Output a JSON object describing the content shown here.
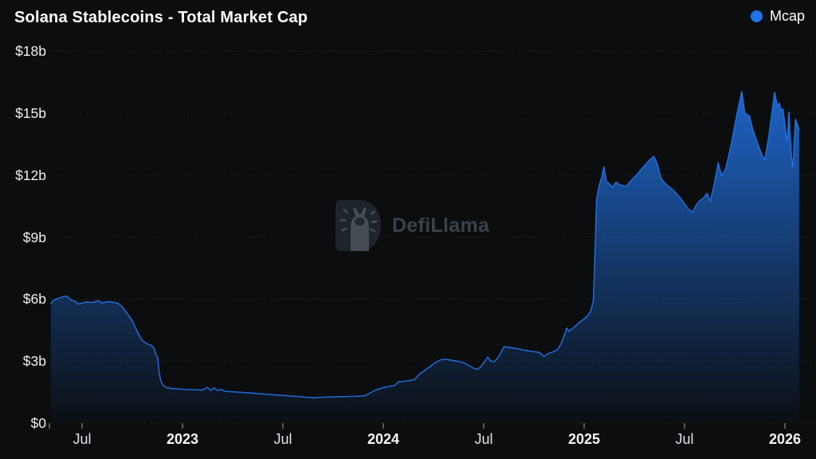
{
  "header": {
    "title": "Solana Stablecoins - Total Market Cap",
    "legend": [
      {
        "label": "Mcap",
        "color": "#2172e5"
      }
    ]
  },
  "watermark": {
    "text": "DefiLlama"
  },
  "chart_data": {
    "type": "area",
    "title": "Solana Stablecoins - Total Market Cap",
    "xlabel": "",
    "ylabel": "",
    "unit": "USD billions",
    "ylim": [
      0,
      18
    ],
    "xlim_years": [
      2022.34,
      2026.16
    ],
    "grid": "horizontal-dotted",
    "legend_position": "top-right",
    "y_ticks": [
      {
        "label": "$18b",
        "value": 18
      },
      {
        "label": "$15b",
        "value": 15
      },
      {
        "label": "$12b",
        "value": 12
      },
      {
        "label": "$9b",
        "value": 9
      },
      {
        "label": "$6b",
        "value": 6
      },
      {
        "label": "$3b",
        "value": 3
      },
      {
        "label": "$0",
        "value": 0
      }
    ],
    "x_ticks": [
      {
        "label": "Jul",
        "year": 2022.5,
        "bold": false
      },
      {
        "label": "2023",
        "year": 2023.0,
        "bold": true
      },
      {
        "label": "Jul",
        "year": 2023.5,
        "bold": false
      },
      {
        "label": "2024",
        "year": 2024.0,
        "bold": true
      },
      {
        "label": "Jul",
        "year": 2024.5,
        "bold": false
      },
      {
        "label": "2025",
        "year": 2025.0,
        "bold": true
      },
      {
        "label": "Jul",
        "year": 2025.5,
        "bold": false
      },
      {
        "label": "2026",
        "year": 2026.0,
        "bold": true
      }
    ],
    "series": [
      {
        "name": "Mcap",
        "color": "#2172e5",
        "points_year_value": [
          [
            2022.345,
            5.78
          ],
          [
            2022.36,
            5.96
          ],
          [
            2022.4,
            6.1
          ],
          [
            2022.425,
            6.15
          ],
          [
            2022.445,
            5.95
          ],
          [
            2022.468,
            5.88
          ],
          [
            2022.483,
            5.76
          ],
          [
            2022.52,
            5.86
          ],
          [
            2022.555,
            5.84
          ],
          [
            2022.582,
            5.92
          ],
          [
            2022.6,
            5.8
          ],
          [
            2022.628,
            5.88
          ],
          [
            2022.655,
            5.85
          ],
          [
            2022.678,
            5.8
          ],
          [
            2022.7,
            5.62
          ],
          [
            2022.725,
            5.3
          ],
          [
            2022.75,
            4.95
          ],
          [
            2022.775,
            4.42
          ],
          [
            2022.798,
            4.02
          ],
          [
            2022.82,
            3.85
          ],
          [
            2022.845,
            3.76
          ],
          [
            2022.858,
            3.62
          ],
          [
            2022.868,
            3.3
          ],
          [
            2022.876,
            3.2
          ],
          [
            2022.883,
            2.52
          ],
          [
            2022.89,
            2.1
          ],
          [
            2022.9,
            1.86
          ],
          [
            2022.92,
            1.72
          ],
          [
            2022.95,
            1.67
          ],
          [
            2023.0,
            1.64
          ],
          [
            2023.05,
            1.62
          ],
          [
            2023.1,
            1.6
          ],
          [
            2023.125,
            1.74
          ],
          [
            2023.14,
            1.58
          ],
          [
            2023.158,
            1.7
          ],
          [
            2023.175,
            1.57
          ],
          [
            2023.19,
            1.64
          ],
          [
            2023.21,
            1.54
          ],
          [
            2023.28,
            1.5
          ],
          [
            2023.35,
            1.45
          ],
          [
            2023.42,
            1.4
          ],
          [
            2023.5,
            1.34
          ],
          [
            2023.58,
            1.28
          ],
          [
            2023.65,
            1.23
          ],
          [
            2023.72,
            1.26
          ],
          [
            2023.8,
            1.28
          ],
          [
            2023.87,
            1.3
          ],
          [
            2023.91,
            1.33
          ],
          [
            2023.935,
            1.46
          ],
          [
            2023.962,
            1.6
          ],
          [
            2024.0,
            1.72
          ],
          [
            2024.03,
            1.78
          ],
          [
            2024.058,
            1.82
          ],
          [
            2024.075,
            2.0
          ],
          [
            2024.1,
            2.02
          ],
          [
            2024.13,
            2.06
          ],
          [
            2024.158,
            2.12
          ],
          [
            2024.178,
            2.36
          ],
          [
            2024.2,
            2.5
          ],
          [
            2024.23,
            2.72
          ],
          [
            2024.258,
            2.92
          ],
          [
            2024.285,
            3.06
          ],
          [
            2024.31,
            3.1
          ],
          [
            2024.34,
            3.04
          ],
          [
            2024.368,
            3.0
          ],
          [
            2024.4,
            2.92
          ],
          [
            2024.43,
            2.76
          ],
          [
            2024.453,
            2.64
          ],
          [
            2024.47,
            2.6
          ],
          [
            2024.49,
            2.78
          ],
          [
            2024.508,
            3.02
          ],
          [
            2024.52,
            3.2
          ],
          [
            2024.532,
            3.02
          ],
          [
            2024.55,
            2.96
          ],
          [
            2024.568,
            3.12
          ],
          [
            2024.588,
            3.45
          ],
          [
            2024.602,
            3.7
          ],
          [
            2024.63,
            3.66
          ],
          [
            2024.668,
            3.6
          ],
          [
            2024.708,
            3.52
          ],
          [
            2024.748,
            3.46
          ],
          [
            2024.778,
            3.42
          ],
          [
            2024.8,
            3.22
          ],
          [
            2024.82,
            3.36
          ],
          [
            2024.848,
            3.46
          ],
          [
            2024.868,
            3.55
          ],
          [
            2024.888,
            3.9
          ],
          [
            2024.9,
            4.2
          ],
          [
            2024.913,
            4.6
          ],
          [
            2024.924,
            4.44
          ],
          [
            2024.94,
            4.56
          ],
          [
            2024.96,
            4.72
          ],
          [
            2024.98,
            4.9
          ],
          [
            2025.0,
            5.05
          ],
          [
            2025.018,
            5.2
          ],
          [
            2025.033,
            5.42
          ],
          [
            2025.046,
            5.9
          ],
          [
            2025.052,
            7.6
          ],
          [
            2025.057,
            9.2
          ],
          [
            2025.062,
            10.8
          ],
          [
            2025.075,
            11.5
          ],
          [
            2025.088,
            11.9
          ],
          [
            2025.098,
            12.4
          ],
          [
            2025.11,
            11.7
          ],
          [
            2025.128,
            11.55
          ],
          [
            2025.143,
            11.4
          ],
          [
            2025.158,
            11.66
          ],
          [
            2025.178,
            11.52
          ],
          [
            2025.21,
            11.46
          ],
          [
            2025.24,
            11.8
          ],
          [
            2025.27,
            12.1
          ],
          [
            2025.3,
            12.45
          ],
          [
            2025.328,
            12.75
          ],
          [
            2025.348,
            12.9
          ],
          [
            2025.365,
            12.5
          ],
          [
            2025.383,
            11.85
          ],
          [
            2025.4,
            11.62
          ],
          [
            2025.42,
            11.45
          ],
          [
            2025.44,
            11.3
          ],
          [
            2025.46,
            11.1
          ],
          [
            2025.478,
            10.9
          ],
          [
            2025.5,
            10.6
          ],
          [
            2025.52,
            10.35
          ],
          [
            2025.54,
            10.2
          ],
          [
            2025.558,
            10.55
          ],
          [
            2025.578,
            10.78
          ],
          [
            2025.598,
            10.92
          ],
          [
            2025.612,
            11.12
          ],
          [
            2025.628,
            10.72
          ],
          [
            2025.648,
            11.55
          ],
          [
            2025.668,
            12.6
          ],
          [
            2025.685,
            11.95
          ],
          [
            2025.705,
            12.3
          ],
          [
            2025.733,
            13.5
          ],
          [
            2025.758,
            14.8
          ],
          [
            2025.785,
            16.05
          ],
          [
            2025.8,
            15.0
          ],
          [
            2025.823,
            14.85
          ],
          [
            2025.84,
            14.2
          ],
          [
            2025.858,
            13.7
          ],
          [
            2025.886,
            12.95
          ],
          [
            2025.9,
            12.75
          ],
          [
            2025.918,
            13.75
          ],
          [
            2025.934,
            14.9
          ],
          [
            2025.948,
            16.0
          ],
          [
            2025.962,
            15.35
          ],
          [
            2025.972,
            15.48
          ],
          [
            2025.982,
            15.1
          ],
          [
            2025.99,
            15.2
          ],
          [
            2026.006,
            13.95
          ],
          [
            2026.012,
            13.6
          ],
          [
            2026.02,
            15.05
          ],
          [
            2026.032,
            12.9
          ],
          [
            2026.04,
            12.4
          ],
          [
            2026.052,
            14.7
          ],
          [
            2026.06,
            14.5
          ],
          [
            2026.071,
            14.2
          ]
        ]
      }
    ]
  }
}
